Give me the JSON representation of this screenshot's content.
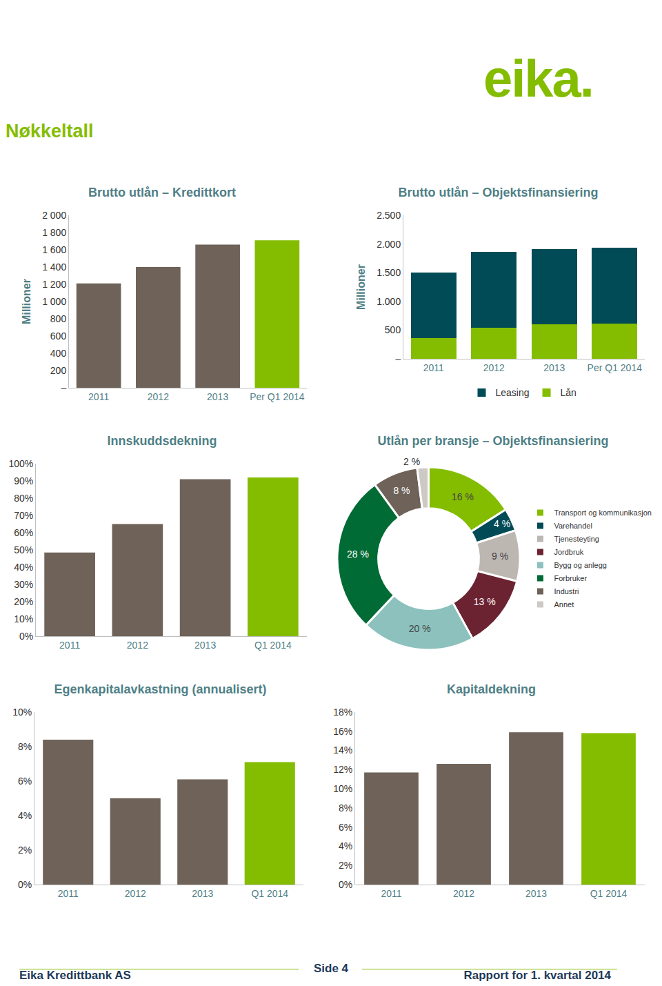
{
  "logo": "eika.",
  "title": "Nøkkeltall",
  "chart_data": [
    {
      "type": "bar",
      "title": "Brutto utlån – Kredittkort",
      "y_label": "Millioner",
      "categories": [
        "2011",
        "2012",
        "2013",
        "Per Q1 2014"
      ],
      "values": [
        1210,
        1400,
        1660,
        1710
      ],
      "colors": [
        "#6e6259",
        "#6e6259",
        "#6e6259",
        "#84bd00"
      ],
      "ylim": [
        0,
        2000
      ],
      "yticks": [
        {
          "value": 0,
          "label": "–"
        },
        200,
        400,
        600,
        800,
        {
          "value": 1000,
          "label": "1 000"
        },
        {
          "value": 1200,
          "label": "1 200"
        },
        {
          "value": 1400,
          "label": "1 400"
        },
        {
          "value": 1600,
          "label": "1 600"
        },
        {
          "value": 1800,
          "label": "1 800"
        },
        {
          "value": 2000,
          "label": "2 000"
        }
      ],
      "grid": false
    },
    {
      "type": "bar",
      "title": "Brutto utlån – Objektsfinansiering",
      "y_label": "Millioner",
      "categories": [
        "2011",
        "2012",
        "2013",
        "Per Q1 2014"
      ],
      "series": [
        {
          "name": "Lån",
          "color": "#84bd00",
          "values": [
            360,
            540,
            600,
            610
          ]
        },
        {
          "name": "Leasing",
          "color": "#004b55",
          "values": [
            1140,
            1320,
            1310,
            1330
          ]
        }
      ],
      "stacked": true,
      "legend": "bottom",
      "ylim": [
        0,
        2500
      ],
      "yticks": [
        {
          "value": 0,
          "label": "–"
        },
        500,
        {
          "value": 1000,
          "label": "1.000"
        },
        {
          "value": 1500,
          "label": "1.500"
        },
        {
          "value": 2000,
          "label": "2.000"
        },
        {
          "value": 2500,
          "label": "2.500"
        }
      ],
      "grid": false
    },
    {
      "type": "bar",
      "title": "Innskuddsdekning",
      "categories": [
        "2011",
        "2012",
        "2013",
        "Q1 2014"
      ],
      "values": [
        48.5,
        65,
        91,
        92
      ],
      "colors": [
        "#6e6259",
        "#6e6259",
        "#6e6259",
        "#84bd00"
      ],
      "ylim": [
        0,
        100
      ],
      "yticks": [
        {
          "value": 0,
          "label": "0%"
        },
        {
          "value": 10,
          "label": "10%"
        },
        {
          "value": 20,
          "label": "20%"
        },
        {
          "value": 30,
          "label": "30%"
        },
        {
          "value": 40,
          "label": "40%"
        },
        {
          "value": 50,
          "label": "50%"
        },
        {
          "value": 60,
          "label": "60%"
        },
        {
          "value": 70,
          "label": "70%"
        },
        {
          "value": 80,
          "label": "80%"
        },
        {
          "value": 90,
          "label": "90%"
        },
        {
          "value": 100,
          "label": "100%"
        }
      ],
      "grid": false
    },
    {
      "type": "pie",
      "title": "Utlån per bransje – Objektsfinansiering",
      "categories": [
        "Transport og kommunikasjon",
        "Varehandel",
        "Tjenesteyting",
        "Jordbruk",
        "Bygg og anlegg",
        "Forbruker",
        "Industri",
        "Annet"
      ],
      "values": [
        16,
        4,
        9,
        13,
        20,
        28,
        8,
        2
      ],
      "value_labels": [
        "16 %",
        "4 %",
        "9 %",
        "13 %",
        "20 %",
        "28 %",
        "8 %",
        "2 %"
      ],
      "colors": [
        "#84bd00",
        "#004b55",
        "#bdb7b2",
        "#6b2331",
        "#8cc1bd",
        "#006b35",
        "#6e6259",
        "#cdc9c5"
      ],
      "legend": "right"
    },
    {
      "type": "bar",
      "title": "Egenkapitalavkastning (annualisert)",
      "categories": [
        "2011",
        "2012",
        "2013",
        "Q1 2014"
      ],
      "values": [
        8.4,
        5.0,
        6.1,
        7.1
      ],
      "colors": [
        "#6e6259",
        "#6e6259",
        "#6e6259",
        "#84bd00"
      ],
      "ylim": [
        0,
        10
      ],
      "yticks": [
        {
          "value": 0,
          "label": "0%"
        },
        {
          "value": 2,
          "label": "2%"
        },
        {
          "value": 4,
          "label": "4%"
        },
        {
          "value": 6,
          "label": "6%"
        },
        {
          "value": 8,
          "label": "8%"
        },
        {
          "value": 10,
          "label": "10%"
        }
      ],
      "grid": false
    },
    {
      "type": "bar",
      "title": "Kapitaldekning",
      "categories": [
        "2011",
        "2012",
        "2013",
        "Q1 2014"
      ],
      "values": [
        11.7,
        12.6,
        15.9,
        15.8
      ],
      "colors": [
        "#6e6259",
        "#6e6259",
        "#6e6259",
        "#84bd00"
      ],
      "ylim": [
        0,
        18
      ],
      "yticks": [
        {
          "value": 0,
          "label": "0%"
        },
        {
          "value": 2,
          "label": "2%"
        },
        {
          "value": 4,
          "label": "4%"
        },
        {
          "value": 6,
          "label": "6%"
        },
        {
          "value": 8,
          "label": "8%"
        },
        {
          "value": 10,
          "label": "10%"
        },
        {
          "value": 12,
          "label": "12%"
        },
        {
          "value": 14,
          "label": "14%"
        },
        {
          "value": 16,
          "label": "16%"
        },
        {
          "value": 18,
          "label": "18%"
        }
      ],
      "grid": false
    }
  ],
  "footer": {
    "left": "Eika Kredittbank AS",
    "center": "Side 4",
    "right": "Rapport for 1. kvartal 2014"
  }
}
